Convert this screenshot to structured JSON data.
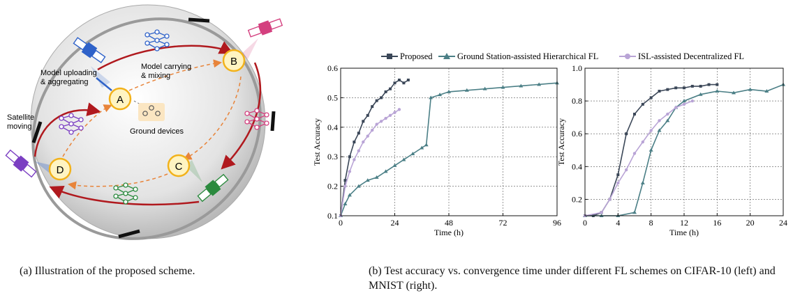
{
  "illustration": {
    "nodes": [
      {
        "id": "A",
        "label": "A"
      },
      {
        "id": "B",
        "label": "B"
      },
      {
        "id": "C",
        "label": "C"
      },
      {
        "id": "D",
        "label": "D"
      }
    ],
    "texts": {
      "upload": [
        "Model uploading",
        "& aggregating"
      ],
      "carry": [
        "Model carrying",
        "& mixing"
      ],
      "satellite": [
        "Satellite",
        "moving"
      ],
      "ground": "Ground devices"
    },
    "colors": {
      "orbit_red": "#b0191e",
      "orbit_gray": "#9a9a9a",
      "dashed_orange": "#e8843a",
      "node_fill": "#fff4c2",
      "node_stroke": "#f2b21b",
      "blue": "#2f62c9",
      "pink": "#d4407f",
      "purple": "#7b3fc2",
      "green": "#2b8a3e"
    }
  },
  "legend": [
    {
      "name": "Proposed",
      "color": "#3b4758",
      "marker": "square"
    },
    {
      "name": "Ground Station-assisted Hierarchical FL",
      "color": "#4b7f86",
      "marker": "triangle"
    },
    {
      "name": "ISL-assisted Decentralized FL",
      "color": "#b9a4d6",
      "marker": "circle"
    }
  ],
  "chart_data": [
    {
      "type": "line",
      "xlabel": "Time (h)",
      "ylabel": "Test Accuracy",
      "xlim": [
        0,
        96
      ],
      "ylim": [
        0.1,
        0.6
      ],
      "xticks": [
        0,
        24,
        48,
        72,
        96
      ],
      "yticks": [
        0.1,
        0.2,
        0.3,
        0.4,
        0.5,
        0.6
      ],
      "xtick_labels": [
        "0",
        "24",
        "48",
        "72",
        "96"
      ],
      "ytick_labels": [
        "0.1",
        "0.2",
        "0.3",
        "0.4",
        "0.5",
        "0.6"
      ],
      "grid": true,
      "series": [
        {
          "name": "Proposed",
          "x": [
            0,
            2,
            4,
            6,
            8,
            10,
            12,
            14,
            16,
            18,
            20,
            22,
            24,
            26,
            28,
            30
          ],
          "y": [
            0.1,
            0.22,
            0.3,
            0.35,
            0.38,
            0.42,
            0.44,
            0.47,
            0.49,
            0.5,
            0.52,
            0.53,
            0.55,
            0.56,
            0.55,
            0.56
          ]
        },
        {
          "name": "Ground Station-assisted Hierarchical FL",
          "x": [
            0,
            2,
            4,
            8,
            12,
            16,
            20,
            24,
            28,
            32,
            36,
            38,
            40,
            44,
            48,
            56,
            64,
            72,
            80,
            88,
            96
          ],
          "y": [
            0.1,
            0.14,
            0.17,
            0.2,
            0.22,
            0.23,
            0.25,
            0.27,
            0.29,
            0.31,
            0.33,
            0.34,
            0.5,
            0.51,
            0.52,
            0.525,
            0.53,
            0.535,
            0.54,
            0.545,
            0.55
          ]
        },
        {
          "name": "ISL-assisted Decentralized FL",
          "x": [
            0,
            2,
            4,
            6,
            8,
            10,
            12,
            14,
            16,
            18,
            20,
            22,
            24,
            26
          ],
          "y": [
            0.1,
            0.2,
            0.25,
            0.29,
            0.32,
            0.35,
            0.37,
            0.39,
            0.41,
            0.42,
            0.43,
            0.44,
            0.45,
            0.46
          ]
        }
      ]
    },
    {
      "type": "line",
      "xlabel": "Time (h)",
      "ylabel": "Test Accuracy",
      "xlim": [
        0,
        24
      ],
      "ylim": [
        0.1,
        1.0
      ],
      "xticks": [
        0,
        4,
        8,
        12,
        16,
        20,
        24
      ],
      "yticks": [
        0.2,
        0.4,
        0.6,
        0.8,
        1.0
      ],
      "xtick_labels": [
        "0",
        "4",
        "8",
        "12",
        "16",
        "20",
        "24"
      ],
      "ytick_labels": [
        "0.2",
        "0.4",
        "0.6",
        "0.8",
        "1.0"
      ],
      "grid": true,
      "series": [
        {
          "name": "Proposed",
          "x": [
            0,
            1,
            2,
            3,
            4,
            5,
            6,
            7,
            8,
            9,
            10,
            11,
            12,
            13,
            14,
            15,
            16
          ],
          "y": [
            0.1,
            0.1,
            0.12,
            0.2,
            0.35,
            0.6,
            0.72,
            0.78,
            0.82,
            0.86,
            0.87,
            0.88,
            0.88,
            0.89,
            0.89,
            0.9,
            0.9
          ]
        },
        {
          "name": "Ground Station-assisted Hierarchical FL",
          "x": [
            0,
            2,
            4,
            6,
            7,
            8,
            9,
            10,
            11,
            12,
            14,
            16,
            18,
            20,
            22,
            24
          ],
          "y": [
            0.1,
            0.1,
            0.1,
            0.12,
            0.3,
            0.5,
            0.62,
            0.68,
            0.76,
            0.8,
            0.84,
            0.86,
            0.85,
            0.87,
            0.86,
            0.9
          ]
        },
        {
          "name": "ISL-assisted Decentralized FL",
          "x": [
            0,
            2,
            3,
            4,
            5,
            6,
            7,
            8,
            9,
            10,
            11,
            12,
            13
          ],
          "y": [
            0.1,
            0.12,
            0.2,
            0.3,
            0.38,
            0.48,
            0.55,
            0.62,
            0.68,
            0.72,
            0.76,
            0.78,
            0.8
          ]
        }
      ]
    }
  ],
  "captions": {
    "a": "(a) Illustration of the proposed scheme.",
    "b": "(b) Test accuracy vs. convergence time under different FL schemes on CIFAR-10 (left) and MNIST (right)."
  }
}
